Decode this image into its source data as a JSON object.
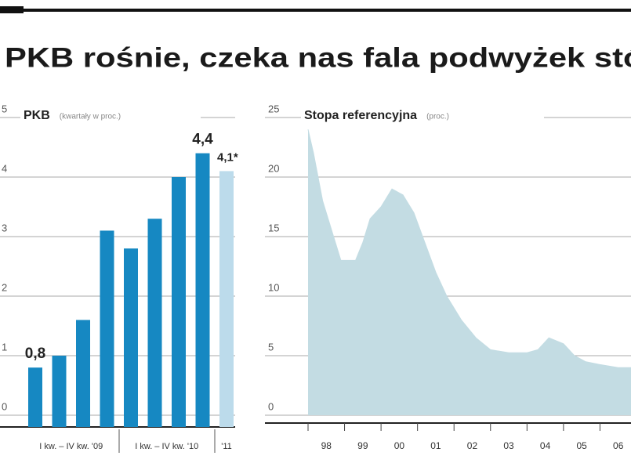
{
  "header": {
    "title": "PKB rośnie, czeka nas fala podwyżek stóp"
  },
  "chart_data": [
    {
      "type": "bar",
      "title": "PKB",
      "subtitle": "(kwartały w proc.)",
      "categories": [
        null,
        null,
        null,
        null,
        null,
        null,
        null,
        null,
        null
      ],
      "period_labels": [
        "I kw. – IV kw. '09",
        "I kw. – IV kw. '10",
        "'11"
      ],
      "values": [
        0.8,
        1.0,
        1.6,
        3.1,
        2.8,
        3.3,
        4.0,
        4.4,
        4.1
      ],
      "value_labels": [
        "0,8",
        null,
        null,
        null,
        null,
        null,
        null,
        "4,4",
        "4,1*"
      ],
      "colors": [
        "#1688c2",
        "#1688c2",
        "#1688c2",
        "#1688c2",
        "#1688c2",
        "#1688c2",
        "#1688c2",
        "#1688c2",
        "#bcdbeb"
      ],
      "ylim": [
        0,
        5
      ],
      "yticks": [
        0,
        1,
        2,
        3,
        4,
        5
      ],
      "grid": true
    },
    {
      "type": "area",
      "title": "Stopa referencyjna",
      "subtitle": "(proc.)",
      "color": "#c3dce3",
      "x": [
        1998.0,
        1998.15,
        1998.4,
        1998.7,
        1998.9,
        1999.3,
        1999.5,
        1999.7,
        2000.0,
        2000.3,
        2000.6,
        2000.9,
        2001.2,
        2001.5,
        2001.8,
        2002.2,
        2002.6,
        2003.0,
        2003.5,
        2004.0,
        2004.3,
        2004.6,
        2005.0,
        2005.3,
        2005.6,
        2006.0,
        2006.5,
        2006.85
      ],
      "values": [
        24,
        22,
        18,
        15,
        13,
        13,
        14.5,
        16.5,
        17.5,
        19,
        18.5,
        17,
        14.5,
        12,
        10,
        8,
        6.5,
        5.5,
        5.25,
        5.25,
        5.5,
        6.5,
        6,
        5,
        4.5,
        4.25,
        4,
        4
      ],
      "xlim": [
        1998,
        2006.85
      ],
      "xticks": [
        {
          "value": 1998.5,
          "label": "98"
        },
        {
          "value": 1999.5,
          "label": "99"
        },
        {
          "value": 2000.5,
          "label": "00"
        },
        {
          "value": 2001.5,
          "label": "01"
        },
        {
          "value": 2002.5,
          "label": "02"
        },
        {
          "value": 2003.5,
          "label": "03"
        },
        {
          "value": 2004.5,
          "label": "04"
        },
        {
          "value": 2005.5,
          "label": "05"
        },
        {
          "value": 2006.5,
          "label": "06"
        }
      ],
      "ylim": [
        0,
        25
      ],
      "yticks": [
        0,
        5,
        10,
        15,
        20,
        25
      ],
      "grid": true
    }
  ]
}
